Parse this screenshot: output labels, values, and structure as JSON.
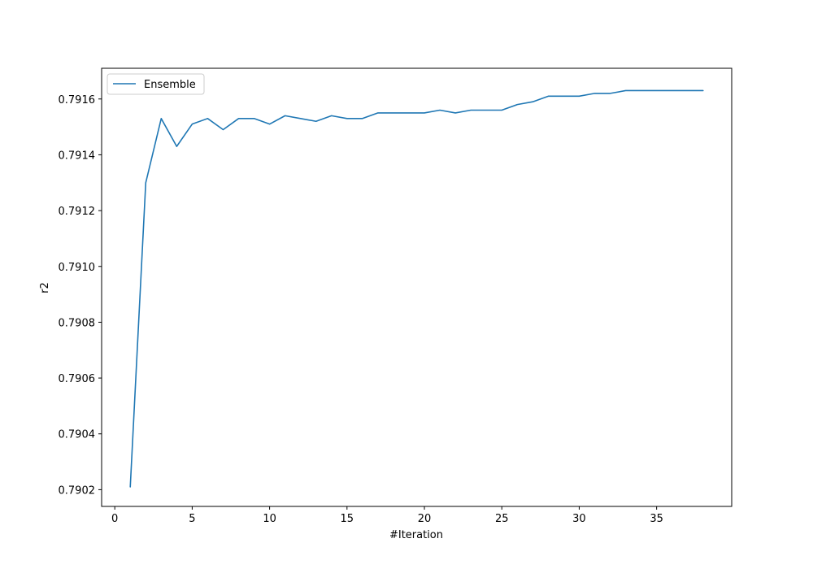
{
  "chart_data": {
    "type": "line",
    "title": "",
    "xlabel": "#Iteration",
    "ylabel": "r2",
    "xlim": [
      -0.85,
      39.85
    ],
    "ylim": [
      0.79014,
      0.79171
    ],
    "xticks": [
      0,
      5,
      10,
      15,
      20,
      25,
      30,
      35
    ],
    "xtick_labels": [
      "0",
      "5",
      "10",
      "15",
      "20",
      "25",
      "30",
      "35"
    ],
    "yticks": [
      0.7902,
      0.7904,
      0.7906,
      0.7908,
      0.791,
      0.7912,
      0.7914,
      0.7916
    ],
    "ytick_labels": [
      "0.7902",
      "0.7904",
      "0.7906",
      "0.7908",
      "0.7910",
      "0.7912",
      "0.7914",
      "0.7916"
    ],
    "grid": false,
    "legend_position": "top-left",
    "x": [
      1,
      2,
      3,
      4,
      5,
      6,
      7,
      8,
      9,
      10,
      11,
      12,
      13,
      14,
      15,
      16,
      17,
      18,
      19,
      20,
      21,
      22,
      23,
      24,
      25,
      26,
      27,
      28,
      29,
      30,
      31,
      32,
      33,
      34,
      35,
      36,
      37,
      38
    ],
    "series": [
      {
        "name": "Ensemble",
        "color": "#1f77b4",
        "values": [
          0.79021,
          0.7913,
          0.79153,
          0.79143,
          0.79151,
          0.79153,
          0.79149,
          0.79153,
          0.79153,
          0.79151,
          0.79154,
          0.79153,
          0.79152,
          0.79154,
          0.79153,
          0.79153,
          0.79155,
          0.79155,
          0.79155,
          0.79155,
          0.79156,
          0.79155,
          0.79156,
          0.79156,
          0.79156,
          0.79158,
          0.79159,
          0.79161,
          0.79161,
          0.79161,
          0.79162,
          0.79162,
          0.79163,
          0.79163,
          0.79163,
          0.79163,
          0.79163,
          0.79163
        ]
      }
    ]
  }
}
